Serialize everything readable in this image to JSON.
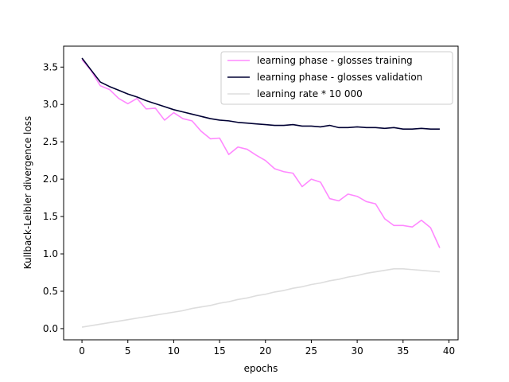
{
  "chart_data": {
    "type": "line",
    "xlabel": "epochs",
    "ylabel": "Kullback-Leibler divergence loss",
    "xlim": [
      -2,
      41
    ],
    "ylim": [
      -0.15,
      3.78
    ],
    "xticks": [
      0,
      5,
      10,
      15,
      20,
      25,
      30,
      35,
      40
    ],
    "yticks": [
      0.0,
      0.5,
      1.0,
      1.5,
      2.0,
      2.5,
      3.0,
      3.5
    ],
    "ytick_labels": [
      "0.0",
      "0.5",
      "1.0",
      "1.5",
      "2.0",
      "2.5",
      "3.0",
      "3.5"
    ],
    "grid": false,
    "legend_position": "top-right",
    "x": [
      0,
      1,
      2,
      3,
      4,
      5,
      6,
      7,
      8,
      9,
      10,
      11,
      12,
      13,
      14,
      15,
      16,
      17,
      18,
      19,
      20,
      21,
      22,
      23,
      24,
      25,
      26,
      27,
      28,
      29,
      30,
      31,
      32,
      33,
      34,
      35,
      36,
      37,
      38,
      39
    ],
    "series": [
      {
        "name": "learning phase - glosses training",
        "color": "#ff88ff",
        "values": [
          3.6,
          3.45,
          3.25,
          3.2,
          3.08,
          3.01,
          3.08,
          2.94,
          2.95,
          2.79,
          2.89,
          2.81,
          2.78,
          2.64,
          2.54,
          2.55,
          2.33,
          2.43,
          2.4,
          2.32,
          2.25,
          2.14,
          2.1,
          2.08,
          1.9,
          2.0,
          1.96,
          1.74,
          1.71,
          1.8,
          1.77,
          1.7,
          1.67,
          1.47,
          1.38,
          1.38,
          1.36,
          1.45,
          1.35,
          1.08
        ]
      },
      {
        "name": "learning phase - glosses validation",
        "color": "#000033",
        "values": [
          3.62,
          3.46,
          3.3,
          3.24,
          3.19,
          3.14,
          3.1,
          3.05,
          3.01,
          2.97,
          2.93,
          2.9,
          2.87,
          2.84,
          2.81,
          2.79,
          2.78,
          2.76,
          2.75,
          2.74,
          2.73,
          2.72,
          2.72,
          2.73,
          2.71,
          2.71,
          2.7,
          2.72,
          2.69,
          2.69,
          2.7,
          2.69,
          2.69,
          2.68,
          2.69,
          2.67,
          2.67,
          2.68,
          2.67,
          2.67
        ]
      },
      {
        "name": "learning rate * 10 000",
        "color": "#dddddd",
        "values": [
          0.02,
          0.04,
          0.06,
          0.08,
          0.1,
          0.12,
          0.14,
          0.16,
          0.18,
          0.2,
          0.22,
          0.24,
          0.27,
          0.29,
          0.31,
          0.34,
          0.36,
          0.39,
          0.41,
          0.44,
          0.46,
          0.49,
          0.51,
          0.54,
          0.56,
          0.59,
          0.61,
          0.64,
          0.66,
          0.69,
          0.71,
          0.74,
          0.76,
          0.78,
          0.8,
          0.8,
          0.79,
          0.78,
          0.77,
          0.76
        ]
      }
    ]
  }
}
